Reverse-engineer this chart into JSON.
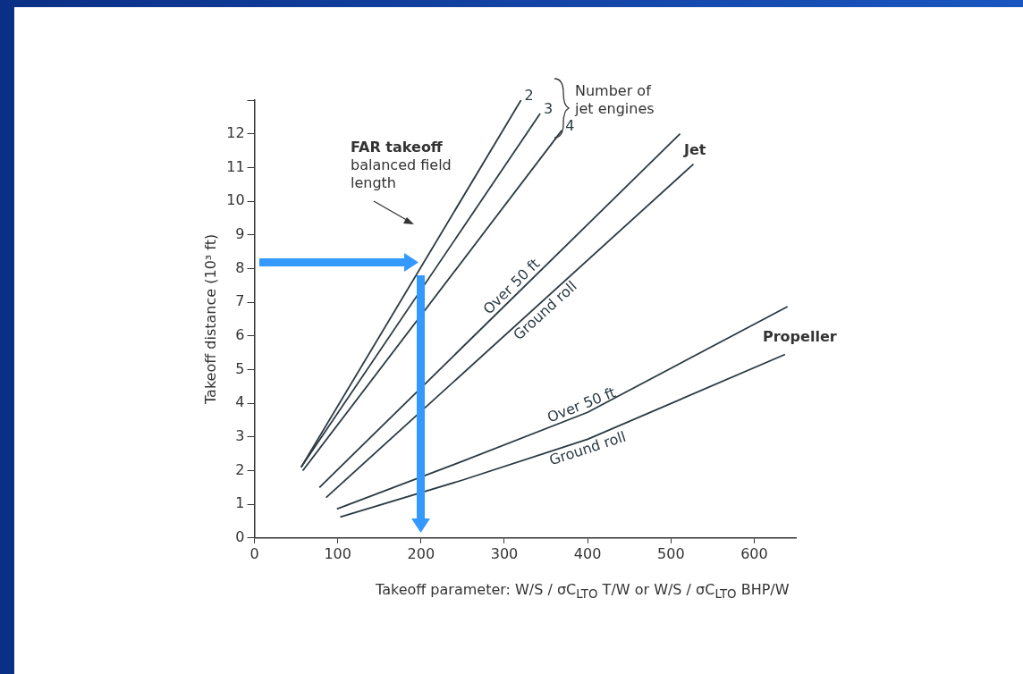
{
  "chart_data": {
    "type": "line",
    "xlabel": "Takeoff parameter: W/S / σC$_{LTO}$ T/W  or  W/S / σC$_{LTO}$ BHP/W",
    "ylabel": "Takeoff distance (10³ ft)",
    "xlim": [
      0,
      650
    ],
    "ylim": [
      0,
      13
    ],
    "xticks": [
      0,
      100,
      200,
      300,
      400,
      500,
      600
    ],
    "yticks": [
      0,
      1,
      2,
      3,
      4,
      5,
      6,
      7,
      8,
      9,
      10,
      11,
      12,
      {
        "value": 13,
        "label": null
      }
    ],
    "grid": false,
    "legend": false,
    "marker": "none",
    "line_style": "solid",
    "series": [
      {
        "name": "2",
        "color": "#2b3a42",
        "x": [
          56,
          320
        ],
        "values": [
          2.1,
          13
        ]
      },
      {
        "name": "3",
        "color": "#2b3a42",
        "x": [
          56,
          343
        ],
        "values": [
          2.1,
          12.6
        ]
      },
      {
        "name": "4",
        "color": "#2b3a42",
        "x": [
          58,
          369
        ],
        "values": [
          2.0,
          12.1
        ]
      },
      {
        "name": "Over 50 ft",
        "color": "#2b3a42",
        "x": [
          78,
          511
        ],
        "values": [
          1.5,
          12
        ]
      },
      {
        "name": "Ground roll",
        "color": "#2b3a42",
        "x": [
          86,
          527
        ],
        "values": [
          1.2,
          11.1
        ]
      },
      {
        "name": "Over 50 ft",
        "color": "#2b3a42",
        "x": [
          99,
          250,
          400,
          640
        ],
        "values": [
          0.86,
          2.28,
          3.73,
          6.87
        ]
      },
      {
        "name": "Ground roll",
        "color": "#2b3a42",
        "x": [
          103,
          250,
          400,
          637
        ],
        "values": [
          0.62,
          1.72,
          2.93,
          5.45
        ]
      }
    ],
    "annotations": [
      "FAR takeoff\nbalanced field\nlength",
      "Number of\njet engines",
      "Jet",
      "Propeller"
    ]
  }
}
